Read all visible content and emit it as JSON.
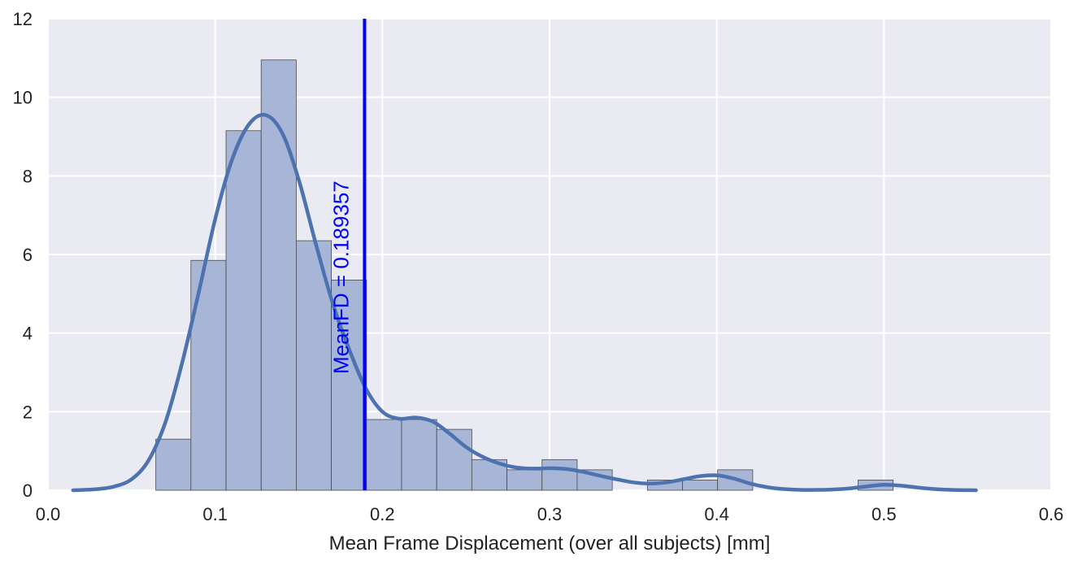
{
  "chart_data": {
    "type": "bar",
    "xlabel": "Mean Frame Displacement (over all subjects) [mm]",
    "ylabel": "",
    "xlim": [
      0.0,
      0.6
    ],
    "ylim": [
      0,
      12
    ],
    "x_ticks": [
      "0.0",
      "0.1",
      "0.2",
      "0.3",
      "0.4",
      "0.5",
      "0.6"
    ],
    "y_ticks": [
      "0",
      "2",
      "4",
      "6",
      "8",
      "10",
      "12"
    ],
    "grid": true,
    "bins": [
      {
        "x0": 0.0645,
        "x1": 0.0855,
        "value": 1.3
      },
      {
        "x0": 0.0855,
        "x1": 0.1065,
        "value": 5.85
      },
      {
        "x0": 0.1065,
        "x1": 0.1275,
        "value": 9.15
      },
      {
        "x0": 0.1275,
        "x1": 0.1485,
        "value": 10.95
      },
      {
        "x0": 0.1485,
        "x1": 0.1695,
        "value": 6.35
      },
      {
        "x0": 0.1695,
        "x1": 0.1905,
        "value": 5.35
      },
      {
        "x0": 0.1905,
        "x1": 0.2115,
        "value": 1.8
      },
      {
        "x0": 0.2115,
        "x1": 0.2325,
        "value": 1.8
      },
      {
        "x0": 0.2325,
        "x1": 0.2535,
        "value": 1.55
      },
      {
        "x0": 0.2535,
        "x1": 0.2745,
        "value": 0.78
      },
      {
        "x0": 0.2745,
        "x1": 0.2955,
        "value": 0.52
      },
      {
        "x0": 0.2955,
        "x1": 0.3165,
        "value": 0.78
      },
      {
        "x0": 0.3165,
        "x1": 0.3375,
        "value": 0.52
      },
      {
        "x0": 0.3375,
        "x1": 0.3585,
        "value": 0
      },
      {
        "x0": 0.3585,
        "x1": 0.3795,
        "value": 0.26
      },
      {
        "x0": 0.3795,
        "x1": 0.4005,
        "value": 0.26
      },
      {
        "x0": 0.4005,
        "x1": 0.4215,
        "value": 0.52
      },
      {
        "x0": 0.4215,
        "x1": 0.4425,
        "value": 0
      },
      {
        "x0": 0.4425,
        "x1": 0.4635,
        "value": 0
      },
      {
        "x0": 0.4635,
        "x1": 0.4845,
        "value": 0
      },
      {
        "x0": 0.4845,
        "x1": 0.5055,
        "value": 0.26
      }
    ],
    "kde": {
      "x": [
        0.015,
        0.03,
        0.04,
        0.05,
        0.06,
        0.07,
        0.08,
        0.09,
        0.1,
        0.11,
        0.12,
        0.13,
        0.14,
        0.15,
        0.16,
        0.17,
        0.18,
        0.19,
        0.2,
        0.21,
        0.22,
        0.23,
        0.24,
        0.25,
        0.26,
        0.27,
        0.28,
        0.29,
        0.3,
        0.31,
        0.32,
        0.33,
        0.34,
        0.35,
        0.36,
        0.37,
        0.38,
        0.39,
        0.4,
        0.41,
        0.42,
        0.43,
        0.44,
        0.45,
        0.46,
        0.47,
        0.48,
        0.49,
        0.5,
        0.51,
        0.52,
        0.53,
        0.54,
        0.555
      ],
      "y": [
        0,
        0.03,
        0.1,
        0.28,
        0.75,
        1.7,
        3.2,
        5.0,
        6.9,
        8.4,
        9.3,
        9.55,
        9.1,
        7.9,
        6.3,
        4.8,
        3.6,
        2.6,
        2.0,
        1.82,
        1.85,
        1.75,
        1.45,
        1.1,
        0.85,
        0.68,
        0.58,
        0.55,
        0.56,
        0.54,
        0.47,
        0.37,
        0.28,
        0.2,
        0.17,
        0.2,
        0.28,
        0.36,
        0.38,
        0.3,
        0.17,
        0.08,
        0.03,
        0.01,
        0.01,
        0.02,
        0.05,
        0.1,
        0.14,
        0.12,
        0.07,
        0.03,
        0.01,
        0
      ]
    },
    "vline": {
      "x": 0.189357,
      "color": "#0000ff",
      "label": "MeanFD = 0.189357"
    },
    "colors": {
      "background": "#eaeaf2",
      "grid": "#ffffff",
      "bar_fill": "#a7b6d6",
      "bar_edge": "#4a4a4a",
      "kde": "#4c72b0",
      "vline": "#0000ff"
    }
  }
}
